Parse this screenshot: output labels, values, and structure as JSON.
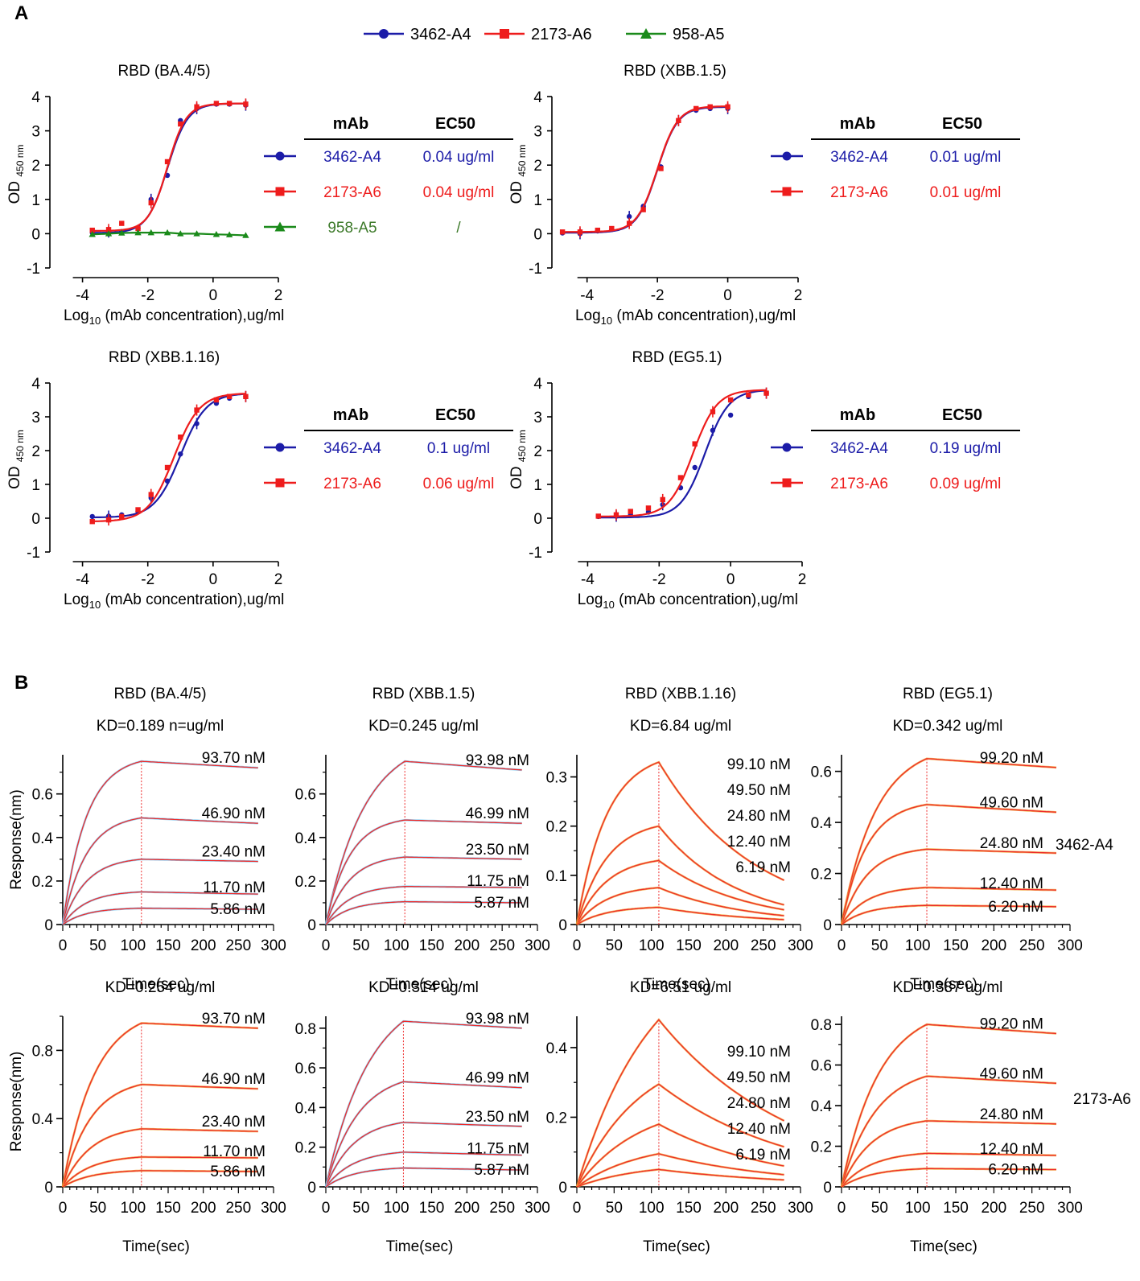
{
  "panel_labels": {
    "a": "A",
    "b": "B"
  },
  "colors": {
    "c3462": "#1c1ca8",
    "c2173": "#ee1c1c",
    "c958": "#1a8a1a",
    "c958text": "#3d7a2a",
    "kinetic_fit": "#ee2b2b",
    "kinetic_data_blue": "#7ec8f0",
    "kinetic_data_orange": "#f0a030"
  },
  "legend": [
    {
      "label": "3462-A4",
      "series": "3462",
      "marker": "circle"
    },
    {
      "label": "2173-A6",
      "series": "2173",
      "marker": "square"
    },
    {
      "label": "958-A5",
      "series": "958",
      "marker": "triangle"
    }
  ],
  "elisa_axis_common": {
    "xlabel_pre": "Log",
    "xlabel_sub": "10",
    "xlabel_post": " (mAb concentration),ug/ml",
    "ylabel_main": "OD",
    "ylabel_sub": "450 nm"
  },
  "tables": [
    {
      "header_mab": "mAb",
      "header_ec50": "EC50",
      "rows": [
        {
          "series": "3462",
          "mab": "3462-A4",
          "ec50": "0.04 ug/ml"
        },
        {
          "series": "2173",
          "mab": "2173-A6",
          "ec50": "0.04 ug/ml"
        },
        {
          "series": "958",
          "mab": "958-A5",
          "ec50": "/"
        }
      ]
    },
    {
      "header_mab": "mAb",
      "header_ec50": "EC50",
      "rows": [
        {
          "series": "3462",
          "mab": "3462-A4",
          "ec50": "0.01 ug/ml"
        },
        {
          "series": "2173",
          "mab": "2173-A6",
          "ec50": "0.01 ug/ml"
        }
      ]
    },
    {
      "header_mab": "mAb",
      "header_ec50": "EC50",
      "rows": [
        {
          "series": "3462",
          "mab": "3462-A4",
          "ec50": "0.1 ug/ml"
        },
        {
          "series": "2173",
          "mab": "2173-A6",
          "ec50": "0.06 ug/ml"
        }
      ]
    },
    {
      "header_mab": "mAb",
      "header_ec50": "EC50",
      "rows": [
        {
          "series": "3462",
          "mab": "3462-A4",
          "ec50": "0.19 ug/ml"
        },
        {
          "series": "2173",
          "mab": "2173-A6",
          "ec50": "0.09 ug/ml"
        }
      ]
    }
  ],
  "kinetic_axis_common": {
    "xlabel": "Time(sec)",
    "ylabel": "Response(nm)"
  },
  "row_labels": [
    "3462-A4",
    "2173-A6"
  ],
  "chart_data": [
    {
      "type": "line",
      "panel": "A",
      "title": "RBD (BA.4/5)",
      "xlim": [
        -5,
        2
      ],
      "ylim": [
        -1,
        4
      ],
      "xticks": [
        -4,
        -2,
        0,
        2
      ],
      "yticks": [
        -1,
        0,
        1,
        2,
        3,
        4
      ],
      "series": [
        {
          "name": "3462-A4",
          "key": "3462",
          "bottom": 0.02,
          "top": 3.8,
          "logEC50": -1.4,
          "hill": 1.4,
          "x": [
            -3.7,
            -3.2,
            -2.8,
            -2.3,
            -1.9,
            -1.4,
            -1.0,
            -0.5,
            0.1,
            0.5,
            1.0
          ],
          "y": [
            0.03,
            0.05,
            0.06,
            0.15,
            1.0,
            1.7,
            3.3,
            3.65,
            3.78,
            3.78,
            3.75
          ]
        },
        {
          "name": "2173-A6",
          "key": "2173",
          "bottom": 0.08,
          "top": 3.8,
          "logEC50": -1.4,
          "hill": 1.5,
          "x": [
            -3.7,
            -3.2,
            -2.8,
            -2.3,
            -1.9,
            -1.4,
            -1.0,
            -0.5,
            0.1,
            0.5,
            1.0
          ],
          "y": [
            0.1,
            0.12,
            0.3,
            0.15,
            0.9,
            2.1,
            3.2,
            3.7,
            3.8,
            3.8,
            3.78
          ]
        },
        {
          "name": "958-A5",
          "key": "958",
          "flat": true,
          "x": [
            -3.7,
            -3.2,
            -2.8,
            -2.3,
            -1.9,
            -1.4,
            -1.0,
            -0.5,
            0.1,
            0.5,
            1.0
          ],
          "y": [
            -0.02,
            0.0,
            0.02,
            0.03,
            0.03,
            0.03,
            0.0,
            0.0,
            -0.02,
            -0.03,
            -0.05
          ]
        }
      ]
    },
    {
      "type": "line",
      "panel": "A",
      "title": "RBD (XBB.1.5)",
      "xlim": [
        -5,
        2
      ],
      "ylim": [
        -1,
        4
      ],
      "xticks": [
        -4,
        -2,
        0,
        2
      ],
      "yticks": [
        -1,
        0,
        1,
        2,
        3,
        4
      ],
      "series": [
        {
          "name": "3462-A4",
          "key": "3462",
          "bottom": 0.03,
          "top": 3.7,
          "logEC50": -2.0,
          "hill": 1.5,
          "x": [
            -4.7,
            -4.2,
            -3.7,
            -3.3,
            -2.8,
            -2.4,
            -1.9,
            -1.4,
            -0.9,
            -0.5,
            0.0
          ],
          "y": [
            0.02,
            0.0,
            0.08,
            0.12,
            0.5,
            0.8,
            1.95,
            3.3,
            3.6,
            3.65,
            3.65
          ]
        },
        {
          "name": "2173-A6",
          "key": "2173",
          "bottom": 0.05,
          "top": 3.72,
          "logEC50": -2.0,
          "hill": 1.5,
          "x": [
            -4.7,
            -4.2,
            -3.7,
            -3.3,
            -2.8,
            -2.4,
            -1.9,
            -1.4,
            -0.9,
            -0.5,
            0.0
          ],
          "y": [
            0.05,
            0.05,
            0.1,
            0.15,
            0.3,
            0.7,
            1.9,
            3.3,
            3.65,
            3.7,
            3.7
          ]
        }
      ]
    },
    {
      "type": "line",
      "panel": "A",
      "title": "RBD (XBB.1.16)",
      "xlim": [
        -5,
        2
      ],
      "ylim": [
        -1,
        4
      ],
      "xticks": [
        -4,
        -2,
        0,
        2
      ],
      "yticks": [
        -1,
        0,
        1,
        2,
        3,
        4
      ],
      "series": [
        {
          "name": "3462-A4",
          "key": "3462",
          "bottom": 0.02,
          "top": 3.7,
          "logEC50": -1.0,
          "hill": 1.1,
          "x": [
            -3.7,
            -3.2,
            -2.8,
            -2.3,
            -1.9,
            -1.4,
            -1.0,
            -0.5,
            0.1,
            0.5,
            1.0
          ],
          "y": [
            0.05,
            0.06,
            0.1,
            0.2,
            0.6,
            1.1,
            1.9,
            2.8,
            3.4,
            3.55,
            3.6
          ]
        },
        {
          "name": "2173-A6",
          "key": "2173",
          "bottom": -0.1,
          "top": 3.7,
          "logEC50": -1.2,
          "hill": 1.1,
          "x": [
            -3.7,
            -3.2,
            -2.8,
            -2.3,
            -1.9,
            -1.4,
            -1.0,
            -0.5,
            0.1,
            0.5,
            1.0
          ],
          "y": [
            -0.1,
            -0.05,
            0.05,
            0.25,
            0.7,
            1.5,
            2.4,
            3.2,
            3.5,
            3.6,
            3.6
          ]
        }
      ]
    },
    {
      "type": "line",
      "panel": "A",
      "title": "RBD (EG5.1)",
      "xlim": [
        -5,
        2
      ],
      "ylim": [
        -1,
        4
      ],
      "xticks": [
        -4,
        -2,
        0,
        2
      ],
      "yticks": [
        -1,
        0,
        1,
        2,
        3,
        4
      ],
      "series": [
        {
          "name": "3462-A4",
          "key": "3462",
          "bottom": 0.02,
          "top": 3.8,
          "logEC50": -0.72,
          "hill": 1.3,
          "x": [
            -3.7,
            -3.2,
            -2.8,
            -2.3,
            -1.9,
            -1.4,
            -1.0,
            -0.5,
            0.0,
            0.5,
            1.0
          ],
          "y": [
            0.05,
            0.06,
            0.1,
            0.18,
            0.4,
            0.9,
            1.5,
            2.6,
            3.05,
            3.6,
            3.7
          ]
        },
        {
          "name": "2173-A6",
          "key": "2173",
          "bottom": 0.05,
          "top": 3.8,
          "logEC50": -1.05,
          "hill": 1.3,
          "x": [
            -3.7,
            -3.2,
            -2.8,
            -2.3,
            -1.9,
            -1.4,
            -1.0,
            -0.5,
            0.0,
            0.5,
            1.0
          ],
          "y": [
            0.06,
            0.1,
            0.2,
            0.3,
            0.55,
            1.2,
            2.2,
            3.15,
            3.5,
            3.65,
            3.7
          ]
        }
      ]
    },
    {
      "type": "line",
      "panel": "B",
      "row": 0,
      "col": 0,
      "title": "RBD (BA.4/5)",
      "kd": "KD=0.189 n=ug/ml",
      "xlim": [
        0,
        300
      ],
      "ylim": [
        0,
        0.78
      ],
      "yticks": [
        0,
        0.2,
        0.4,
        0.6
      ],
      "ytick_labels": [
        "0",
        "0.2",
        "0.4",
        "0.6"
      ],
      "xticks": [
        0,
        50,
        100,
        150,
        200,
        250,
        300
      ],
      "assoc_end": 112,
      "t_end": 278,
      "data_color": "blue",
      "curves": [
        {
          "conc": "93.70 nM",
          "peak": 0.75,
          "end": 0.72,
          "k": 0.03
        },
        {
          "conc": "46.90 nM",
          "peak": 0.49,
          "end": 0.465,
          "k": 0.03
        },
        {
          "conc": "23.40 nM",
          "peak": 0.3,
          "end": 0.29,
          "k": 0.03
        },
        {
          "conc": "11.70 nM",
          "peak": 0.15,
          "end": 0.14,
          "k": 0.03
        },
        {
          "conc": "5.86 nM",
          "peak": 0.075,
          "end": 0.07,
          "k": 0.03
        }
      ]
    },
    {
      "type": "line",
      "panel": "B",
      "row": 0,
      "col": 1,
      "title": "RBD (XBB.1.5)",
      "kd": "KD=0.245 ug/ml",
      "xlim": [
        0,
        300
      ],
      "ylim": [
        0,
        0.78
      ],
      "yticks": [
        0,
        0.2,
        0.4,
        0.6
      ],
      "ytick_labels": [
        "0",
        "0.2",
        "0.4",
        "0.6"
      ],
      "xticks": [
        0,
        50,
        100,
        150,
        200,
        250,
        300
      ],
      "assoc_end": 112,
      "t_end": 278,
      "data_color": "blue",
      "curves": [
        {
          "conc": "93.98 nM",
          "peak": 0.75,
          "end": 0.71,
          "k": 0.018
        },
        {
          "conc": "46.99 nM",
          "peak": 0.48,
          "end": 0.465,
          "k": 0.03
        },
        {
          "conc": "23.50 nM",
          "peak": 0.31,
          "end": 0.3,
          "k": 0.03
        },
        {
          "conc": "11.75 nM",
          "peak": 0.175,
          "end": 0.17,
          "k": 0.03
        },
        {
          "conc": "5.87 nM",
          "peak": 0.105,
          "end": 0.1,
          "k": 0.03
        }
      ]
    },
    {
      "type": "line",
      "panel": "B",
      "row": 0,
      "col": 2,
      "title": "RBD (XBB.1.16)",
      "kd": "KD=6.84 ug/ml",
      "xlim": [
        0,
        300
      ],
      "ylim": [
        0,
        0.345
      ],
      "yticks": [
        0,
        0.1,
        0.2,
        0.3
      ],
      "ytick_labels": [
        "0",
        "0.1",
        "0.2",
        "0.3"
      ],
      "xticks": [
        0,
        50,
        100,
        150,
        200,
        250,
        300
      ],
      "assoc_end": 110,
      "t_end": 278,
      "data_color": "orange",
      "curves": [
        {
          "conc": "99.10 nM",
          "peak": 0.33,
          "end": 0.09,
          "k": 0.025
        },
        {
          "conc": "49.50 nM",
          "peak": 0.2,
          "end": 0.04,
          "k": 0.025
        },
        {
          "conc": "24.80 nM",
          "peak": 0.13,
          "end": 0.03,
          "k": 0.025
        },
        {
          "conc": "12.40 nM",
          "peak": 0.075,
          "end": 0.018,
          "k": 0.025
        },
        {
          "conc": "6.19 nM",
          "peak": 0.035,
          "end": 0.01,
          "k": 0.025
        }
      ]
    },
    {
      "type": "line",
      "panel": "B",
      "row": 0,
      "col": 3,
      "title": "RBD (EG5.1)",
      "kd": "KD=0.342 ug/ml",
      "xlim": [
        0,
        300
      ],
      "ylim": [
        0,
        0.665
      ],
      "yticks": [
        0,
        0.2,
        0.4,
        0.6
      ],
      "ytick_labels": [
        "0",
        "0.2",
        "0.4",
        "0.6"
      ],
      "xticks": [
        0,
        50,
        100,
        150,
        200,
        250,
        300
      ],
      "assoc_end": 112,
      "t_end": 282,
      "data_color": "orange",
      "curves": [
        {
          "conc": "99.20 nM",
          "peak": 0.65,
          "end": 0.615,
          "k": 0.022
        },
        {
          "conc": "49.60 nM",
          "peak": 0.47,
          "end": 0.44,
          "k": 0.03
        },
        {
          "conc": "24.80 nM",
          "peak": 0.295,
          "end": 0.28,
          "k": 0.03
        },
        {
          "conc": "12.40 nM",
          "peak": 0.145,
          "end": 0.135,
          "k": 0.03
        },
        {
          "conc": "6.20 nM",
          "peak": 0.075,
          "end": 0.07,
          "k": 0.03
        }
      ]
    },
    {
      "type": "line",
      "panel": "B",
      "row": 1,
      "col": 0,
      "title": "",
      "kd": "KD=0.254 ug/ml",
      "xlim": [
        0,
        300
      ],
      "ylim": [
        0,
        1.0
      ],
      "yticks": [
        0,
        0.4,
        0.8
      ],
      "ytick_labels": [
        "0",
        "0.4",
        "0.8"
      ],
      "xticks": [
        0,
        50,
        100,
        150,
        200,
        250,
        300
      ],
      "assoc_end": 112,
      "t_end": 278,
      "data_color": "orange",
      "curves": [
        {
          "conc": "93.70 nM",
          "peak": 0.96,
          "end": 0.93,
          "k": 0.022
        },
        {
          "conc": "46.90 nM",
          "peak": 0.6,
          "end": 0.575,
          "k": 0.025
        },
        {
          "conc": "23.40 nM",
          "peak": 0.34,
          "end": 0.325,
          "k": 0.025
        },
        {
          "conc": "11.70 nM",
          "peak": 0.175,
          "end": 0.17,
          "k": 0.025
        },
        {
          "conc": "5.86 nM",
          "peak": 0.095,
          "end": 0.09,
          "k": 0.025
        }
      ]
    },
    {
      "type": "line",
      "panel": "B",
      "row": 1,
      "col": 1,
      "title": "",
      "kd": "KD=0.314 ug/ml",
      "xlim": [
        0,
        300
      ],
      "ylim": [
        0,
        0.86
      ],
      "yticks": [
        0,
        0.2,
        0.4,
        0.6,
        0.8
      ],
      "ytick_labels": [
        "0",
        "0.2",
        "0.4",
        "0.6",
        "0.8"
      ],
      "xticks": [
        0,
        50,
        100,
        150,
        200,
        250,
        300
      ],
      "assoc_end": 110,
      "t_end": 278,
      "data_color": "blue",
      "curves": [
        {
          "conc": "93.98 nM",
          "peak": 0.835,
          "end": 0.8,
          "k": 0.016
        },
        {
          "conc": "46.99 nM",
          "peak": 0.53,
          "end": 0.5,
          "k": 0.022
        },
        {
          "conc": "23.50 nM",
          "peak": 0.325,
          "end": 0.305,
          "k": 0.025
        },
        {
          "conc": "11.75 nM",
          "peak": 0.175,
          "end": 0.16,
          "k": 0.025
        },
        {
          "conc": "5.87 nM",
          "peak": 0.095,
          "end": 0.085,
          "k": 0.025
        }
      ]
    },
    {
      "type": "line",
      "panel": "B",
      "row": 1,
      "col": 2,
      "title": "",
      "kd": "KD=6.51 ug/ml",
      "xlim": [
        0,
        300
      ],
      "ylim": [
        0,
        0.49
      ],
      "yticks": [
        0,
        0.2,
        0.4
      ],
      "ytick_labels": [
        "0",
        "0.2",
        "0.4"
      ],
      "xticks": [
        0,
        50,
        100,
        150,
        200,
        250,
        300
      ],
      "assoc_end": 110,
      "t_end": 278,
      "data_color": "orange",
      "curves": [
        {
          "conc": "99.10 nM",
          "peak": 0.48,
          "end": 0.19,
          "k": 0.01
        },
        {
          "conc": "49.50 nM",
          "peak": 0.295,
          "end": 0.115,
          "k": 0.012
        },
        {
          "conc": "24.80 nM",
          "peak": 0.18,
          "end": 0.06,
          "k": 0.012
        },
        {
          "conc": "12.40 nM",
          "peak": 0.095,
          "end": 0.035,
          "k": 0.012
        },
        {
          "conc": "6.19 nM",
          "peak": 0.05,
          "end": 0.02,
          "k": 0.012
        }
      ]
    },
    {
      "type": "line",
      "panel": "B",
      "row": 1,
      "col": 3,
      "title": "",
      "kd": "KD=0.387 ug/ml",
      "xlim": [
        0,
        300
      ],
      "ylim": [
        0,
        0.84
      ],
      "yticks": [
        0,
        0.2,
        0.4,
        0.6,
        0.8
      ],
      "ytick_labels": [
        "0",
        "0.2",
        "0.4",
        "0.6",
        "0.8"
      ],
      "xticks": [
        0,
        50,
        100,
        150,
        200,
        250,
        300
      ],
      "assoc_end": 112,
      "t_end": 282,
      "data_color": "orange",
      "curves": [
        {
          "conc": "99.20 nM",
          "peak": 0.8,
          "end": 0.755,
          "k": 0.02
        },
        {
          "conc": "49.60 nM",
          "peak": 0.545,
          "end": 0.51,
          "k": 0.022
        },
        {
          "conc": "24.80 nM",
          "peak": 0.325,
          "end": 0.31,
          "k": 0.025
        },
        {
          "conc": "12.40 nM",
          "peak": 0.165,
          "end": 0.155,
          "k": 0.025
        },
        {
          "conc": "6.20 nM",
          "peak": 0.09,
          "end": 0.085,
          "k": 0.025
        }
      ]
    }
  ]
}
